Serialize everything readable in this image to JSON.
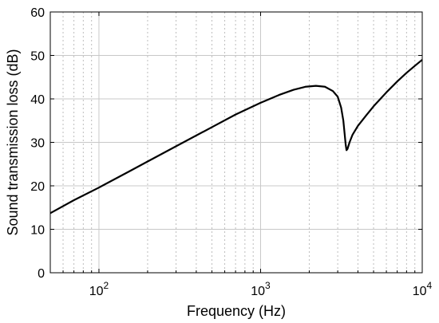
{
  "chart_data": {
    "type": "line",
    "title": "",
    "xlabel": "Frequency (Hz)",
    "ylabel": "Sound transmission loss (dB)",
    "x_scale": "log",
    "xlim": [
      50,
      10000
    ],
    "ylim": [
      0,
      60
    ],
    "grid": true,
    "legend": "none",
    "x_ticks": [
      {
        "value": 100,
        "base": "10",
        "exp": "2"
      },
      {
        "value": 1000,
        "base": "10",
        "exp": "3"
      },
      {
        "value": 10000,
        "base": "10",
        "exp": "4"
      }
    ],
    "y_ticks": [
      {
        "value": 0,
        "label": "0"
      },
      {
        "value": 10,
        "label": "10"
      },
      {
        "value": 20,
        "label": "20"
      },
      {
        "value": 30,
        "label": "30"
      },
      {
        "value": 40,
        "label": "40"
      },
      {
        "value": 50,
        "label": "50"
      },
      {
        "value": 60,
        "label": "60"
      }
    ],
    "series": [
      {
        "color": "#000000",
        "points": [
          [
            50,
            13.7
          ],
          [
            70,
            16.7
          ],
          [
            100,
            19.6
          ],
          [
            150,
            23.1
          ],
          [
            200,
            25.6
          ],
          [
            300,
            29.1
          ],
          [
            500,
            33.5
          ],
          [
            700,
            36.4
          ],
          [
            1000,
            39.1
          ],
          [
            1300,
            40.9
          ],
          [
            1600,
            42.1
          ],
          [
            1900,
            42.8
          ],
          [
            2200,
            43.0
          ],
          [
            2500,
            42.8
          ],
          [
            2800,
            41.8
          ],
          [
            3000,
            40.5
          ],
          [
            3150,
            38.0
          ],
          [
            3250,
            35.0
          ],
          [
            3320,
            31.5
          ],
          [
            3360,
            29.5
          ],
          [
            3400,
            28.2
          ],
          [
            3450,
            28.5
          ],
          [
            3550,
            30.0
          ],
          [
            3700,
            31.7
          ],
          [
            4000,
            33.8
          ],
          [
            4500,
            36.2
          ],
          [
            5000,
            38.3
          ],
          [
            6000,
            41.5
          ],
          [
            7000,
            44.0
          ],
          [
            8000,
            46.0
          ],
          [
            9000,
            47.6
          ],
          [
            10000,
            49.0
          ]
        ]
      }
    ]
  }
}
